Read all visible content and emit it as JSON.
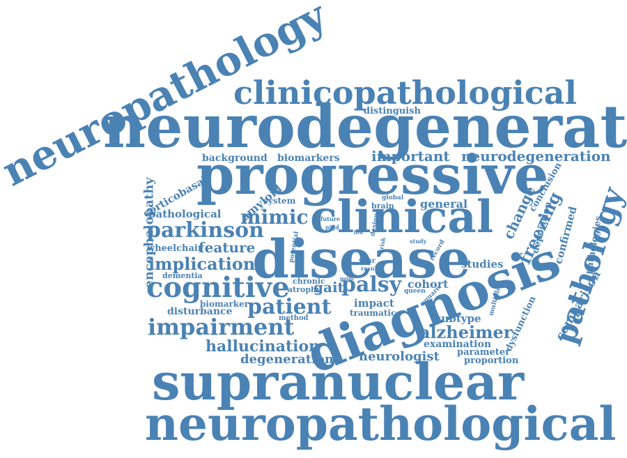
{
  "color": "#4a82b4",
  "words": [
    "neuropathology",
    "clinicopathological",
    "neurodegenerative",
    "distinguish",
    "background",
    "biomarkers",
    "important",
    "neurodegeneration",
    "progressive",
    "corticobasal",
    "encephalopathy",
    "amyloid",
    "system",
    "global",
    "conclusion",
    "brain",
    "general",
    "change",
    "freezing",
    "pathology",
    "pathologies",
    "pathological",
    "mimic",
    "clinical",
    "future",
    "pigd",
    "design",
    "deposition",
    "confirmed",
    "parkinson",
    "wheelchair",
    "feature",
    "potential",
    "disease",
    "risk",
    "study",
    "record",
    "low",
    "implication",
    "dementia",
    "year",
    "result",
    "point",
    "chronic",
    "studies",
    "comparison",
    "cognitive",
    "atrophy",
    "gait",
    "palsy",
    "queen",
    "square",
    "cohort",
    "diagnosis",
    "multiple",
    "encephalopathy",
    "patient",
    "biomarker",
    "disturbance",
    "impact",
    "traumatic",
    "method",
    "subtype",
    "dysfunction",
    "impairment",
    "alzheimer",
    "examination",
    "hallucination",
    "parameter",
    "neurologist",
    "proportion",
    "degeneration",
    "supranuclear",
    "neuropathological"
  ]
}
